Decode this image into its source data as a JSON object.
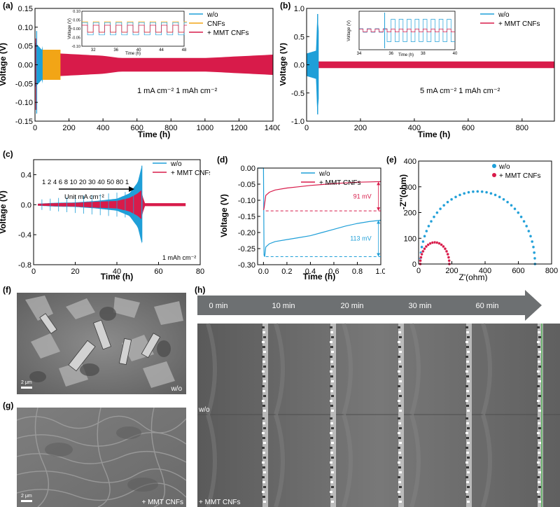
{
  "figure": {
    "panel_labels": [
      "(a)",
      "(b)",
      "(c)",
      "(d)",
      "(e)",
      "(f)",
      "(g)",
      "(h)"
    ]
  },
  "colors": {
    "wo": "#1f9fd8",
    "cnfs": "#f2a516",
    "mmt": "#d81b4a",
    "arrow": "#6d7072",
    "scale_bar": "#ffffff"
  },
  "panel_a": {
    "label": "(a)",
    "annotation": "1 mA cm⁻² 1 mAh cm⁻²",
    "inset": {
      "ylabel": "Voltage (V)",
      "xlabel": "Time (h)"
    }
  },
  "panel_b": {
    "label": "(b)",
    "annotation": "5 mA cm⁻² 1 mAh cm⁻²",
    "inset": {
      "ylabel": "Voltage (V)",
      "xlabel": "Time (h)"
    }
  },
  "panel_c": {
    "label": "(c)",
    "rate_sequence": "1 2 4 6 8 10 20 30 40 50 80 1",
    "unit_label": "Unit mA cm⁻²",
    "capacity_label": "1 mAh cm⁻²"
  },
  "panel_d": {
    "label": "(d)",
    "annotation_mmt": "91 mV",
    "annotation_wo": "113 mV"
  },
  "panel_e": {
    "label": "(e)"
  },
  "panel_f": {
    "label": "(f)",
    "scale": "2 μm",
    "sample": "w/o"
  },
  "panel_g": {
    "label": "(g)",
    "scale": "2 μm",
    "sample": "+ MMT CNFs"
  },
  "panel_h": {
    "label": "(h)",
    "times": [
      "0 min",
      "10 min",
      "20 min",
      "30 min",
      "60 min"
    ],
    "rows": [
      "w/o",
      "+ MMT CNFs"
    ]
  },
  "chart_data": [
    {
      "id": "a",
      "type": "line",
      "xlabel": "Time (h)",
      "ylabel": "Voltage (V)",
      "xlim": [
        0,
        1400
      ],
      "ylim": [
        -0.15,
        0.15
      ],
      "xticks": [
        0,
        200,
        400,
        600,
        800,
        1000,
        1200,
        1400
      ],
      "yticks": [
        -0.15,
        -0.1,
        -0.05,
        0.0,
        0.05,
        0.1,
        0.15
      ],
      "legend": "top-right",
      "series": [
        {
          "name": "w/o",
          "t_end": 45,
          "envelope": [
            [
              0,
              0.06
            ],
            [
              40,
              0.04
            ],
            [
              45,
              0.05
            ]
          ]
        },
        {
          "name": "CNFs",
          "t_end": 150,
          "envelope": [
            [
              0,
              0.04
            ],
            [
              60,
              0.04
            ],
            [
              150,
              0.04
            ]
          ]
        },
        {
          "name": "+ MMT CNFs",
          "t_end": 1400,
          "envelope": [
            [
              0,
              0.032
            ],
            [
              150,
              0.03
            ],
            [
              400,
              0.024
            ],
            [
              500,
              0.018
            ],
            [
              1000,
              0.018
            ],
            [
              1400,
              0.027
            ]
          ]
        }
      ],
      "inset": {
        "xlim": [
          30,
          48
        ],
        "ylim": [
          -0.1,
          0.1
        ],
        "xticks": [
          32,
          36,
          40,
          44,
          48
        ],
        "yticks": [
          -0.1,
          -0.05,
          0.0,
          0.05,
          0.1
        ]
      }
    },
    {
      "id": "b",
      "type": "line",
      "xlabel": "Time (h)",
      "ylabel": "Voltage (V)",
      "xlim": [
        0,
        920
      ],
      "ylim": [
        -1.0,
        1.0
      ],
      "xticks": [
        0,
        200,
        400,
        600,
        800
      ],
      "yticks": [
        -1.0,
        -0.5,
        0.0,
        0.5,
        1.0
      ],
      "legend": "top-right",
      "series": [
        {
          "name": "w/o",
          "t_end": 45,
          "envelope": [
            [
              0,
              0.2
            ],
            [
              35,
              0.25
            ],
            [
              40,
              0.9
            ],
            [
              45,
              0.6
            ]
          ]
        },
        {
          "name": "+ MMT CNFs",
          "t_end": 920,
          "envelope": [
            [
              0,
              0.06
            ],
            [
              920,
              0.06
            ]
          ]
        }
      ],
      "inset": {
        "xlim": [
          34,
          40
        ],
        "xticks": [
          34,
          36,
          38,
          40
        ]
      }
    },
    {
      "id": "c",
      "type": "line",
      "xlabel": "Time (h)",
      "ylabel": "Voltage (V)",
      "xlim": [
        0,
        80
      ],
      "ylim": [
        -0.8,
        0.6
      ],
      "xticks": [
        0,
        20,
        40,
        60,
        80
      ],
      "yticks": [
        -0.8,
        -0.4,
        0.0,
        0.4
      ],
      "legend": "top-right",
      "series": [
        {
          "name": "w/o",
          "t_end": 52,
          "envelope": [
            [
              0,
              0.01
            ],
            [
              10,
              0.025
            ],
            [
              20,
              0.03
            ],
            [
              30,
              0.05
            ],
            [
              40,
              0.08
            ],
            [
              46,
              0.15
            ],
            [
              50,
              0.3
            ],
            [
              52,
              0.52
            ]
          ]
        },
        {
          "name": "+ MMT CNFs",
          "t_end": 73,
          "envelope": [
            [
              0,
              0.01
            ],
            [
              10,
              0.02
            ],
            [
              20,
              0.025
            ],
            [
              30,
              0.04
            ],
            [
              40,
              0.05
            ],
            [
              46,
              0.09
            ],
            [
              50,
              0.15
            ],
            [
              52,
              0.2
            ],
            [
              53,
              0.02
            ],
            [
              73,
              0.02
            ]
          ]
        }
      ]
    },
    {
      "id": "d",
      "type": "line",
      "xlabel": "Time (h)",
      "ylabel": "Voltage (V)",
      "xlim": [
        -0.05,
        1.0
      ],
      "ylim": [
        -0.3,
        0.0
      ],
      "xticks": [
        0.0,
        0.2,
        0.4,
        0.6,
        0.8,
        1.0
      ],
      "yticks": [
        0.0,
        -0.05,
        -0.1,
        -0.15,
        -0.2,
        -0.25,
        -0.3
      ],
      "legend": "top-right",
      "series": [
        {
          "name": "w/o",
          "x": [
            -0.05,
            0.0,
            0.005,
            0.01,
            0.02,
            0.05,
            0.1,
            0.2,
            0.3,
            0.4,
            0.5,
            0.6,
            0.7,
            0.8,
            0.9,
            1.0
          ],
          "y": [
            0.0,
            0.0,
            -0.27,
            -0.275,
            -0.245,
            -0.235,
            -0.228,
            -0.222,
            -0.216,
            -0.21,
            -0.2,
            -0.19,
            -0.18,
            -0.172,
            -0.166,
            -0.162
          ]
        },
        {
          "name": "+ MMT CNFs",
          "x": [
            0.0,
            0.005,
            0.01,
            0.02,
            0.05,
            0.1,
            0.2,
            0.3,
            0.4,
            0.5,
            0.6,
            0.7,
            0.8,
            0.9,
            1.0
          ],
          "y": [
            -0.13,
            -0.125,
            -0.11,
            -0.085,
            -0.075,
            -0.068,
            -0.062,
            -0.058,
            -0.054,
            -0.051,
            -0.048,
            -0.046,
            -0.044,
            -0.043,
            -0.042
          ]
        }
      ],
      "reference_lines": [
        {
          "series": "+ MMT CNFs",
          "y": -0.133,
          "delta": "91 mV"
        },
        {
          "series": "w/o",
          "y": -0.275,
          "delta": "113 mV"
        }
      ]
    },
    {
      "id": "e",
      "type": "scatter",
      "xlabel": "Z'(ohm)",
      "ylabel": "-Z''(ohm)",
      "xlim": [
        0,
        800
      ],
      "ylim": [
        0,
        400
      ],
      "xticks": [
        0,
        200,
        400,
        600,
        800
      ],
      "yticks": [
        0,
        100,
        200,
        300,
        400
      ],
      "legend": "top-right",
      "series": [
        {
          "name": "w/o",
          "arc": {
            "start": 10,
            "end": 700,
            "peak": 282
          }
        },
        {
          "name": "+ MMT CNFs",
          "arc": {
            "start": 10,
            "end": 185,
            "peak": 84
          }
        }
      ]
    }
  ]
}
